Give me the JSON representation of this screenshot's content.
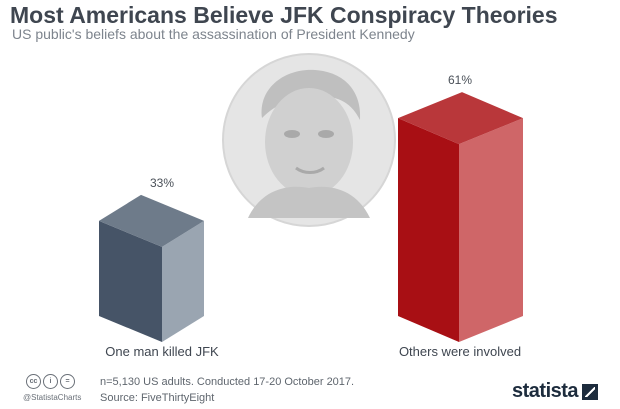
{
  "header": {
    "title": "Most Americans Believe JFK Conspiracy Theories",
    "subtitle": "US public's beliefs about the assassination of President Kennedy"
  },
  "chart_data": {
    "type": "bar",
    "categories": [
      "One man killed JFK",
      "Others were involved"
    ],
    "values": [
      33,
      61
    ],
    "value_labels": [
      "33%",
      "61%"
    ],
    "unit": "%",
    "ylim": [
      0,
      70
    ],
    "grid": false,
    "legend": "none",
    "colors": {
      "bar_1": {
        "front": "#465467",
        "side": "#9aa5b1",
        "top": "#6e7b8a"
      },
      "bar_2": {
        "front": "#a80f14",
        "side": "#cf6668",
        "top": "#b9373a"
      }
    }
  },
  "footer": {
    "note": "n=5,130 US adults. Conducted 17-20 October 2017.",
    "source": "Source: FiveThirtyEight",
    "handle": "@StatistaCharts",
    "logo": "statista",
    "license_icons": [
      "cc-icon",
      "by-icon",
      "nd-icon"
    ]
  }
}
